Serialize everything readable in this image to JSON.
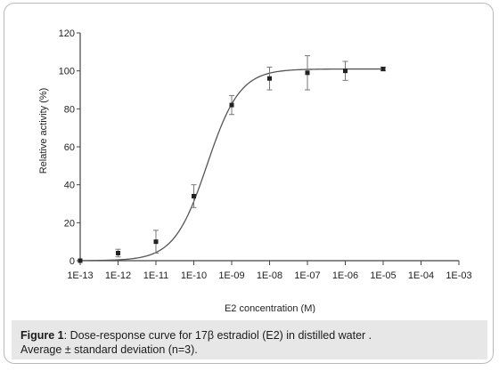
{
  "chart_data": {
    "type": "line",
    "xlabel": "E2 concentration (M)",
    "ylabel": "Relative activity (%)",
    "ylim": [
      0,
      120
    ],
    "y_ticks": [
      "0",
      "20",
      "40",
      "60",
      "80",
      "100",
      "120"
    ],
    "x_ticks": [
      "1E-13",
      "1E-12",
      "1E-11",
      "1E-10",
      "1E-09",
      "1E-08",
      "1E-07",
      "1E-06",
      "1E-05",
      "1E-04",
      "1E-03"
    ],
    "x_scale": "log",
    "grid": false,
    "series": [
      {
        "x": [
          1e-13,
          1e-12,
          1e-11,
          1e-10,
          1e-09,
          1e-08,
          1e-07,
          1e-06,
          1e-05
        ],
        "y": [
          0,
          4,
          10,
          34,
          82,
          96,
          99,
          100,
          101
        ],
        "error": [
          0,
          2,
          6,
          6,
          5,
          6,
          9,
          5,
          1
        ]
      }
    ]
  },
  "caption": {
    "label": "Figure 1",
    "text": ": Dose-response curve for 17β estradiol  (E2) in distilled water .",
    "line2": "Average ± standard deviation (n=3)."
  }
}
